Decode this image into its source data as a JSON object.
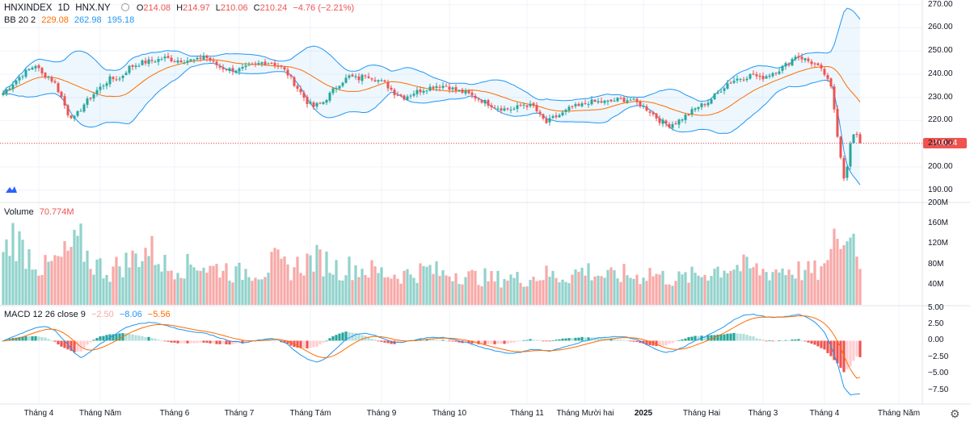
{
  "header": {
    "symbol": "HNXINDEX",
    "interval": "1D",
    "exchange": "HNX.NY",
    "ohlc": {
      "o_label": "O",
      "o": "214.08",
      "h_label": "H",
      "h": "214.97",
      "l_label": "L",
      "l": "210.06",
      "c_label": "C",
      "c": "210.24",
      "change": "−4.76 (−2.21%)"
    },
    "bb": {
      "label": "BB 20 2",
      "mid": "229.08",
      "upper": "262.98",
      "lower": "195.18"
    }
  },
  "volume_header": {
    "label": "Volume",
    "value": "70.774M"
  },
  "macd_header": {
    "label": "MACD 12 26 close 9",
    "hist": "−2.50",
    "macd": "−8.06",
    "signal": "−5.56"
  },
  "last_price": "210.24",
  "colors": {
    "up": "#26a69a",
    "down": "#ef5350",
    "bb": "#2196f3",
    "basis": "#ff6d00",
    "macd": "#2196f3",
    "signal": "#ff6d00"
  },
  "chart_data": {
    "type": "candlestick",
    "price_axis": {
      "ticks": [
        "270.00",
        "260.00",
        "250.00",
        "240.00",
        "230.00",
        "220.00",
        "210.00",
        "200.00",
        "190.00"
      ],
      "range": [
        185,
        272
      ]
    },
    "volume_axis": {
      "ticks": [
        "200M",
        "160M",
        "120M",
        "80M",
        "40M"
      ],
      "range": [
        0,
        200
      ]
    },
    "macd_axis": {
      "ticks": [
        "5.00",
        "2.50",
        "0.00",
        "−2.50",
        "−5.00",
        "−7.50"
      ],
      "range": [
        -9.5,
        5.2
      ]
    },
    "x_labels": [
      "Tháng 4",
      "Tháng Năm",
      "Tháng 6",
      "Tháng 7",
      "Tháng Tám",
      "Tháng 9",
      "Tháng 10",
      "Tháng 11",
      "Tháng Mười hai",
      "2025",
      "Tháng Hai",
      "Tháng 3",
      "Tháng 4",
      "Tháng Năm"
    ],
    "x_label_days": [
      11,
      30,
      53,
      73,
      95,
      117,
      138,
      162,
      180,
      198,
      216,
      235,
      254,
      277
    ],
    "close_anchors": [
      [
        0,
        232
      ],
      [
        3,
        236
      ],
      [
        6,
        240
      ],
      [
        10,
        244
      ],
      [
        12,
        240
      ],
      [
        14,
        239
      ],
      [
        16,
        236
      ],
      [
        18,
        230
      ],
      [
        20,
        223
      ],
      [
        22,
        221
      ],
      [
        25,
        227
      ],
      [
        29,
        233
      ],
      [
        33,
        238
      ],
      [
        36,
        238
      ],
      [
        39,
        243
      ],
      [
        43,
        245
      ],
      [
        47,
        246
      ],
      [
        50,
        247
      ],
      [
        53,
        246
      ],
      [
        57,
        246
      ],
      [
        60,
        246
      ],
      [
        62,
        248
      ],
      [
        64,
        246
      ],
      [
        67,
        243
      ],
      [
        70,
        242
      ],
      [
        73,
        242
      ],
      [
        76,
        243
      ],
      [
        80,
        245
      ],
      [
        83,
        245
      ],
      [
        86,
        243
      ],
      [
        88,
        240
      ],
      [
        90,
        236
      ],
      [
        92,
        232
      ],
      [
        94,
        228
      ],
      [
        96,
        226
      ],
      [
        99,
        228
      ],
      [
        102,
        233
      ],
      [
        104,
        236
      ],
      [
        107,
        239
      ],
      [
        110,
        238
      ],
      [
        112,
        240
      ],
      [
        115,
        238
      ],
      [
        118,
        236
      ],
      [
        121,
        232
      ],
      [
        124,
        230
      ],
      [
        127,
        232
      ],
      [
        131,
        234
      ],
      [
        134,
        235
      ],
      [
        137,
        235
      ],
      [
        140,
        233
      ],
      [
        143,
        232
      ],
      [
        146,
        230
      ],
      [
        149,
        228
      ],
      [
        152,
        226
      ],
      [
        155,
        225
      ],
      [
        158,
        225
      ],
      [
        161,
        227
      ],
      [
        164,
        226
      ],
      [
        166,
        222
      ],
      [
        168,
        219
      ],
      [
        170,
        221
      ],
      [
        173,
        223
      ],
      [
        176,
        226
      ],
      [
        178,
        226
      ],
      [
        181,
        228
      ],
      [
        184,
        228
      ],
      [
        187,
        228
      ],
      [
        190,
        229
      ],
      [
        194,
        229
      ],
      [
        197,
        227
      ],
      [
        200,
        224
      ],
      [
        203,
        220
      ],
      [
        206,
        218
      ],
      [
        209,
        220
      ],
      [
        212,
        223
      ],
      [
        215,
        226
      ],
      [
        218,
        228
      ],
      [
        221,
        232
      ],
      [
        224,
        236
      ],
      [
        227,
        238
      ],
      [
        230,
        239
      ],
      [
        232,
        240
      ],
      [
        234,
        238
      ],
      [
        237,
        240
      ],
      [
        240,
        242
      ],
      [
        243,
        245
      ],
      [
        245,
        248
      ],
      [
        247,
        247
      ],
      [
        250,
        245
      ],
      [
        252,
        243
      ],
      [
        254,
        240
      ],
      [
        255,
        237
      ],
      [
        256,
        234
      ],
      [
        257,
        225
      ],
      [
        258,
        213
      ],
      [
        259,
        204
      ],
      [
        260,
        195
      ],
      [
        261,
        200
      ],
      [
        262,
        210
      ],
      [
        263,
        214
      ],
      [
        264,
        214
      ],
      [
        265,
        210.24
      ]
    ],
    "volume_anchors": [
      [
        0,
        95
      ],
      [
        3,
        140
      ],
      [
        6,
        110
      ],
      [
        9,
        95
      ],
      [
        12,
        70
      ],
      [
        15,
        80
      ],
      [
        18,
        90
      ],
      [
        21,
        110
      ],
      [
        24,
        120
      ],
      [
        27,
        85
      ],
      [
        30,
        75
      ],
      [
        33,
        65
      ],
      [
        36,
        80
      ],
      [
        39,
        85
      ],
      [
        42,
        100
      ],
      [
        45,
        110
      ],
      [
        48,
        95
      ],
      [
        51,
        70
      ],
      [
        54,
        80
      ],
      [
        57,
        75
      ],
      [
        60,
        85
      ],
      [
        64,
        70
      ],
      [
        68,
        75
      ],
      [
        72,
        60
      ],
      [
        76,
        70
      ],
      [
        80,
        65
      ],
      [
        84,
        85
      ],
      [
        88,
        70
      ],
      [
        92,
        80
      ],
      [
        96,
        90
      ],
      [
        100,
        85
      ],
      [
        104,
        70
      ],
      [
        108,
        75
      ],
      [
        112,
        70
      ],
      [
        116,
        65
      ],
      [
        120,
        60
      ],
      [
        124,
        60
      ],
      [
        128,
        65
      ],
      [
        132,
        70
      ],
      [
        136,
        60
      ],
      [
        140,
        65
      ],
      [
        144,
        55
      ],
      [
        148,
        55
      ],
      [
        152,
        50
      ],
      [
        156,
        55
      ],
      [
        160,
        50
      ],
      [
        164,
        55
      ],
      [
        168,
        60
      ],
      [
        172,
        55
      ],
      [
        176,
        60
      ],
      [
        180,
        70
      ],
      [
        184,
        60
      ],
      [
        188,
        55
      ],
      [
        192,
        60
      ],
      [
        196,
        55
      ],
      [
        200,
        65
      ],
      [
        204,
        55
      ],
      [
        208,
        50
      ],
      [
        212,
        55
      ],
      [
        216,
        60
      ],
      [
        220,
        70
      ],
      [
        224,
        75
      ],
      [
        228,
        75
      ],
      [
        232,
        70
      ],
      [
        236,
        65
      ],
      [
        240,
        70
      ],
      [
        244,
        70
      ],
      [
        248,
        65
      ],
      [
        252,
        65
      ],
      [
        255,
        70
      ],
      [
        257,
        150
      ],
      [
        259,
        110
      ],
      [
        261,
        125
      ],
      [
        263,
        140
      ],
      [
        264,
        95
      ],
      [
        265,
        70.774
      ]
    ],
    "macd_anchors": [
      [
        0,
        0.0
      ],
      [
        5,
        1.0
      ],
      [
        10,
        2.0
      ],
      [
        13,
        2.2
      ],
      [
        16,
        1.5
      ],
      [
        19,
        0.0
      ],
      [
        22,
        -1.8
      ],
      [
        24,
        -2.6
      ],
      [
        26,
        -2.0
      ],
      [
        30,
        -0.5
      ],
      [
        34,
        0.8
      ],
      [
        38,
        2.0
      ],
      [
        42,
        2.6
      ],
      [
        46,
        2.8
      ],
      [
        50,
        2.4
      ],
      [
        54,
        1.8
      ],
      [
        58,
        1.4
      ],
      [
        62,
        1.2
      ],
      [
        66,
        0.6
      ],
      [
        70,
        0.0
      ],
      [
        74,
        -0.3
      ],
      [
        78,
        0.0
      ],
      [
        82,
        0.3
      ],
      [
        85,
        0.2
      ],
      [
        88,
        -0.6
      ],
      [
        91,
        -1.8
      ],
      [
        94,
        -2.8
      ],
      [
        97,
        -3.3
      ],
      [
        100,
        -2.6
      ],
      [
        103,
        -1.2
      ],
      [
        106,
        0.2
      ],
      [
        109,
        0.9
      ],
      [
        112,
        1.2
      ],
      [
        115,
        0.8
      ],
      [
        118,
        0.2
      ],
      [
        121,
        -0.3
      ],
      [
        124,
        -0.2
      ],
      [
        128,
        0.2
      ],
      [
        132,
        0.5
      ],
      [
        136,
        0.5
      ],
      [
        140,
        0.1
      ],
      [
        144,
        -0.4
      ],
      [
        148,
        -1.0
      ],
      [
        152,
        -1.5
      ],
      [
        156,
        -1.9
      ],
      [
        160,
        -1.8
      ],
      [
        163,
        -1.3
      ],
      [
        166,
        -1.4
      ],
      [
        169,
        -1.6
      ],
      [
        172,
        -1.2
      ],
      [
        176,
        -0.6
      ],
      [
        180,
        0.0
      ],
      [
        184,
        0.4
      ],
      [
        188,
        0.6
      ],
      [
        192,
        0.6
      ],
      [
        196,
        0.2
      ],
      [
        199,
        -0.6
      ],
      [
        202,
        -1.4
      ],
      [
        205,
        -1.8
      ],
      [
        208,
        -1.5
      ],
      [
        211,
        -0.8
      ],
      [
        214,
        0.0
      ],
      [
        217,
        0.6
      ],
      [
        220,
        1.3
      ],
      [
        223,
        2.2
      ],
      [
        226,
        3.2
      ],
      [
        229,
        3.9
      ],
      [
        232,
        4.0
      ],
      [
        235,
        3.7
      ],
      [
        238,
        3.5
      ],
      [
        241,
        3.6
      ],
      [
        244,
        3.8
      ],
      [
        246,
        4.0
      ],
      [
        248,
        3.7
      ],
      [
        250,
        3.2
      ],
      [
        252,
        2.4
      ],
      [
        254,
        1.2
      ],
      [
        256,
        -0.8
      ],
      [
        258,
        -3.5
      ],
      [
        260,
        -7.0
      ],
      [
        262,
        -8.2
      ],
      [
        264,
        -8.1
      ],
      [
        265,
        -8.06
      ]
    ],
    "last_values": {
      "close": 210.24,
      "bb_mid": 229.08,
      "bb_upper": 262.98,
      "bb_lower": 195.18,
      "volume_m": 70.774,
      "macd": -8.06,
      "signal": -5.56,
      "histogram": -2.5
    }
  }
}
